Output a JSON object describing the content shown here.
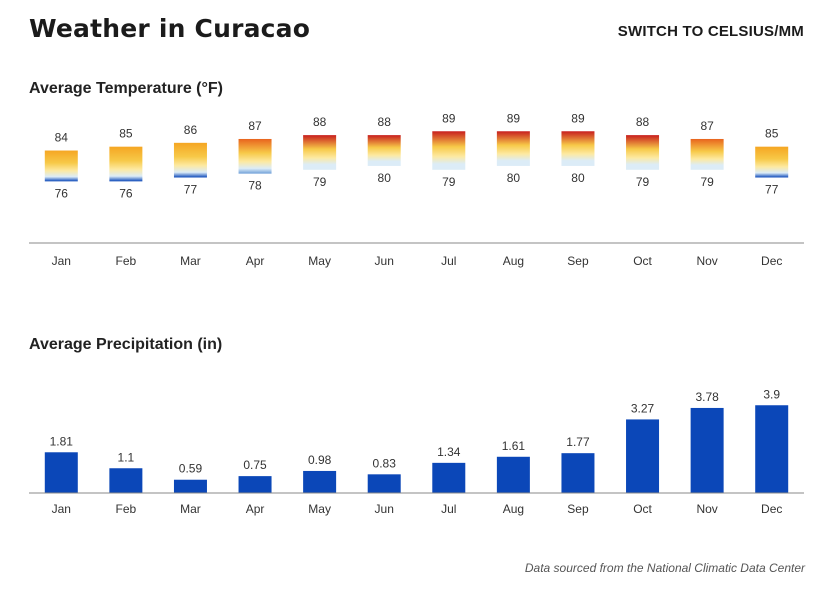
{
  "header": {
    "title": "Weather in Curacao",
    "unit_toggle_label": "SWITCH TO CELSIUS/MM"
  },
  "sections": {
    "temperature_title": "Average Temperature (°F)",
    "precipitation_title": "Average Precipitation (in)"
  },
  "footer": {
    "source": "Data sourced from the National Climatic Data Center"
  },
  "colors": {
    "precip_bar": "#0b47b8",
    "axis": "#888888",
    "temp_hot": "#c81e1e",
    "temp_warm": "#f5a623",
    "temp_mild": "#fde9a0",
    "temp_cool": "#dcecf7",
    "temp_cold": "#0b47b8"
  },
  "chart_data": [
    {
      "type": "bar",
      "subtype": "range",
      "title": "Average Temperature (°F)",
      "categories": [
        "Jan",
        "Feb",
        "Mar",
        "Apr",
        "May",
        "Jun",
        "Jul",
        "Aug",
        "Sep",
        "Oct",
        "Nov",
        "Dec"
      ],
      "series": [
        {
          "name": "High",
          "values": [
            84,
            85,
            86,
            87,
            88,
            88,
            89,
            89,
            89,
            88,
            87,
            85
          ]
        },
        {
          "name": "Low",
          "values": [
            76,
            76,
            77,
            78,
            79,
            80,
            79,
            80,
            80,
            79,
            79,
            77
          ]
        }
      ],
      "ylim": [
        60,
        94
      ]
    },
    {
      "type": "bar",
      "title": "Average Precipitation (in)",
      "categories": [
        "Jan",
        "Feb",
        "Mar",
        "Apr",
        "May",
        "Jun",
        "Jul",
        "Aug",
        "Sep",
        "Oct",
        "Nov",
        "Dec"
      ],
      "values": [
        1.81,
        1.1,
        0.59,
        0.75,
        0.98,
        0.83,
        1.34,
        1.61,
        1.77,
        3.27,
        3.78,
        3.9
      ],
      "ylim": [
        0,
        4
      ]
    }
  ]
}
